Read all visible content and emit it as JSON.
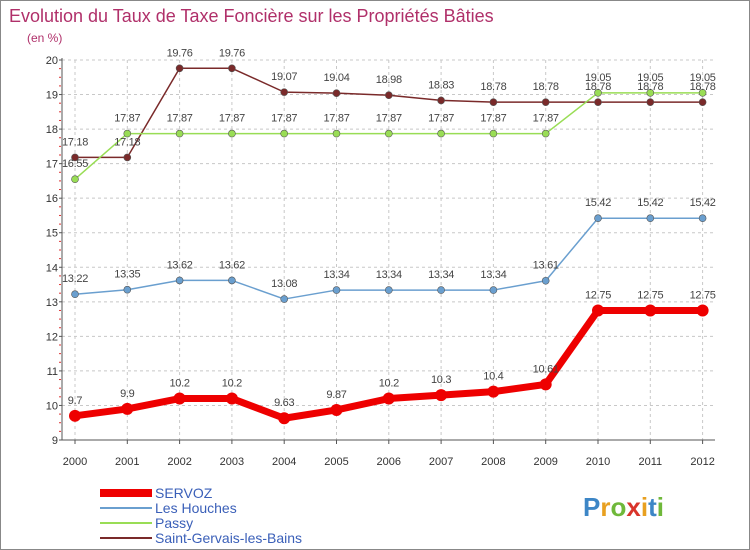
{
  "title": "Evolution du Taux de Taxe Foncière sur les Propriétés Bâties",
  "unit": "(en %)",
  "brand": "Proxiti",
  "colors": {
    "title": "#b0306a",
    "legend_text": "#3a5fb8"
  },
  "chart_data": {
    "type": "line",
    "title": "Evolution du Taux de Taxe Foncière sur les Propriétés Bâties",
    "ylabel": "(en %)",
    "xlabel": "",
    "ylim": [
      9,
      20
    ],
    "yticks": [
      9,
      10,
      11,
      12,
      13,
      14,
      15,
      16,
      17,
      18,
      19,
      20
    ],
    "x": [
      "2000",
      "2001",
      "2002",
      "2003",
      "2004",
      "2005",
      "2006",
      "2007",
      "2008",
      "2009",
      "2010",
      "2011",
      "2012"
    ],
    "legend_position": "bottom-left",
    "series": [
      {
        "name": "SERVOZ",
        "color": "#ee0000",
        "width": "thick",
        "values": [
          9.7,
          9.9,
          10.2,
          10.2,
          9.63,
          9.87,
          10.2,
          10.3,
          10.4,
          10.61,
          12.75,
          12.75,
          12.75
        ],
        "labels": [
          "9.7",
          "9.9",
          "10.2",
          "10.2",
          "9.63",
          "9.87",
          "10.2",
          "10.3",
          "10.4",
          "10.61",
          "12.75",
          "12.75",
          "12.75"
        ]
      },
      {
        "name": "Les Houches",
        "color": "#6a9fcf",
        "width": "thin",
        "values": [
          13.22,
          13.35,
          13.62,
          13.62,
          13.08,
          13.34,
          13.34,
          13.34,
          13.34,
          13.61,
          15.42,
          15.42,
          15.42
        ],
        "labels": [
          "13.22",
          "13.35",
          "13.62",
          "13.62",
          "13.08",
          "13.34",
          "13.34",
          "13.34",
          "13.34",
          "13.61",
          "15.42",
          "15.42",
          "15.42"
        ]
      },
      {
        "name": "Passy",
        "color": "#99dd55",
        "width": "thin",
        "values": [
          16.55,
          17.87,
          17.87,
          17.87,
          17.87,
          17.87,
          17.87,
          17.87,
          17.87,
          17.87,
          19.05,
          19.05,
          19.05
        ],
        "labels": [
          "16.55",
          "17.87",
          "17.87",
          "17.87",
          "17.87",
          "17.87",
          "17.87",
          "17.87",
          "17.87",
          "17.87",
          "19.05",
          "19.05",
          "19.05"
        ]
      },
      {
        "name": "Saint-Gervais-les-Bains",
        "color": "#7a2a2a",
        "width": "thin",
        "values": [
          17.18,
          17.18,
          19.76,
          19.76,
          19.07,
          19.04,
          18.98,
          18.83,
          18.78,
          18.78,
          18.78,
          18.78,
          18.78
        ],
        "labels": [
          "17.18",
          "17.18",
          "19.76",
          "19.76",
          "19.07",
          "19.04",
          "18.98",
          "18.83",
          "18.78",
          "18.78",
          "18.78",
          "18.78",
          "18.78"
        ]
      }
    ]
  }
}
